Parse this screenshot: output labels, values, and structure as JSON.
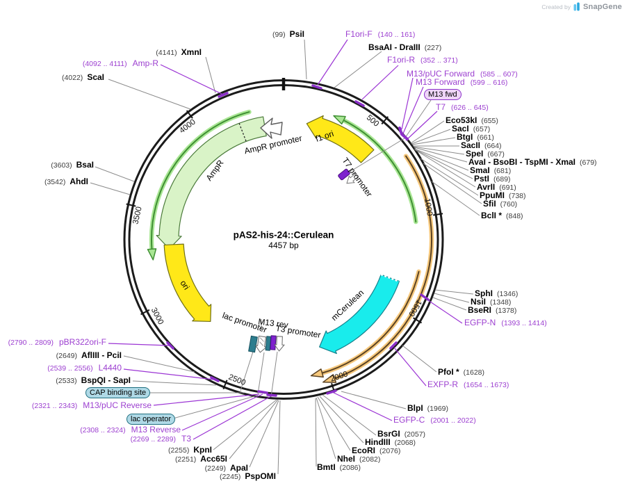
{
  "meta": {
    "created_by": "Created by",
    "brand": "SnapGene"
  },
  "plasmid": {
    "name": "pAS2-his-24::Cerulean",
    "size": "4457 bp",
    "length": 4457
  },
  "ticks": [
    {
      "label": "500",
      "pos": 500
    },
    {
      "label": "1000",
      "pos": 1000
    },
    {
      "label": "1500",
      "pos": 1500
    },
    {
      "label": "2000",
      "pos": 2000
    },
    {
      "label": "2500",
      "pos": 2500
    },
    {
      "label": "3000",
      "pos": 3000
    },
    {
      "label": "3500",
      "pos": 3500
    },
    {
      "label": "4000",
      "pos": 4000
    }
  ],
  "features": {
    "ampr_label": "AmpR",
    "ampr_promoter_label": "AmpR promoter",
    "f1_ori_label": "f1 ori",
    "t7_promoter_label": "T7 promoter",
    "mcerulean_label": "mCerulean",
    "ori_label": "ori",
    "lac_promoter_label": "lac promoter",
    "m13_rev_label": "M13 rev",
    "t3_promoter_label": "T3 promoter"
  },
  "badges": {
    "m13_fwd": "M13 fwd",
    "cap_binding_site": "CAP binding site",
    "lac_operator": "lac operator"
  },
  "sites": [
    {
      "name": "PsiI",
      "pos": "(99)"
    },
    {
      "name": "BsaAI - DraIII",
      "pos": "(227)"
    },
    {
      "name": "Eco53kI",
      "pos": "(655)"
    },
    {
      "name": "SacI",
      "pos": "(657)"
    },
    {
      "name": "BtgI",
      "pos": "(661)"
    },
    {
      "name": "SacII",
      "pos": "(664)"
    },
    {
      "name": "SpeI",
      "pos": "(667)"
    },
    {
      "name": "AvaI - BsoBI - TspMI - XmaI",
      "pos": "(679)"
    },
    {
      "name": "SmaI",
      "pos": "(681)"
    },
    {
      "name": "PstI",
      "pos": "(689)"
    },
    {
      "name": "AvrII",
      "pos": "(691)"
    },
    {
      "name": "PpuMI",
      "pos": "(738)"
    },
    {
      "name": "SfiI",
      "pos": "(760)"
    },
    {
      "name": "BclI *",
      "pos": "(848)"
    },
    {
      "name": "SphI",
      "pos": "(1346)"
    },
    {
      "name": "NsiI",
      "pos": "(1348)"
    },
    {
      "name": "BseRI",
      "pos": "(1378)"
    },
    {
      "name": "PfoI *",
      "pos": "(1628)"
    },
    {
      "name": "BlpI",
      "pos": "(1969)"
    },
    {
      "name": "BsrGI",
      "pos": "(2057)"
    },
    {
      "name": "HindIII",
      "pos": "(2068)"
    },
    {
      "name": "EcoRI",
      "pos": "(2076)"
    },
    {
      "name": "NheI",
      "pos": "(2082)"
    },
    {
      "name": "BmtI",
      "pos": "(2086)"
    },
    {
      "name": "PspOMI",
      "pos": "(2245)"
    },
    {
      "name": "ApaI",
      "pos": "(2249)"
    },
    {
      "name": "Acc65I",
      "pos": "(2251)"
    },
    {
      "name": "KpnI",
      "pos": "(2255)"
    },
    {
      "name": "BspQI - SapI",
      "pos": "(2533)"
    },
    {
      "name": "AflIII - PciI",
      "pos": "(2649)"
    },
    {
      "name": "AhdI",
      "pos": "(3542)"
    },
    {
      "name": "BsaI",
      "pos": "(3603)"
    },
    {
      "name": "ScaI",
      "pos": "(4022)"
    },
    {
      "name": "XmnI",
      "pos": "(4141)"
    }
  ],
  "primers": [
    {
      "name": "F1ori-F",
      "range": "(140 .. 161)"
    },
    {
      "name": "F1ori-R",
      "range": "(352 .. 371)"
    },
    {
      "name": "M13/pUC Forward",
      "range": "(585 .. 607)"
    },
    {
      "name": "M13 Forward",
      "range": "(599 .. 616)"
    },
    {
      "name": "T7",
      "range": "(626 .. 645)"
    },
    {
      "name": "EGFP-N",
      "range": "(1393 .. 1414)"
    },
    {
      "name": "EXFP-R",
      "range": "(1654 .. 1673)"
    },
    {
      "name": "EGFP-C",
      "range": "(2001 .. 2022)"
    },
    {
      "name": "T3",
      "range": "(2269 .. 2289)"
    },
    {
      "name": "M13 Reverse",
      "range": "(2308 .. 2324)"
    },
    {
      "name": "M13/pUC Reverse",
      "range": "(2321 .. 2343)"
    },
    {
      "name": "L4440",
      "range": "(2539 .. 2556)"
    },
    {
      "name": "pBR322ori-F",
      "range": "(2790 .. 2809)"
    },
    {
      "name": "Amp-R",
      "range": "(4092 .. 4111)"
    }
  ],
  "map_features": [
    {
      "kind": "band",
      "name": "AmpR",
      "tail": 4340,
      "head": 3285,
      "r": 165,
      "w": 14,
      "fill": "#d9f3c7",
      "stroke": "#4a7a3a"
    },
    {
      "kind": "band",
      "name": "f1 ori",
      "tail": 560,
      "head": 140,
      "r": 170,
      "w": 13,
      "fill": "#ffe818",
      "stroke": "#6f6f15"
    },
    {
      "kind": "band",
      "name": "ori",
      "tail": 3310,
      "head": 2745,
      "r": 158,
      "w": 14,
      "fill": "#ffe818",
      "stroke": "#6f6f15"
    },
    {
      "kind": "band",
      "name": "mCerulean",
      "tail": 1360,
      "head": 2000,
      "r": 163,
      "w": 14,
      "fill": "#19ecec",
      "stroke": "#15808c"
    },
    {
      "kind": "thin",
      "name": "",
      "tail": 4270,
      "head": 3260,
      "r": 190,
      "glow": "#a9e694",
      "core": "#3f8f33"
    },
    {
      "kind": "thin",
      "name": "",
      "tail": 1020,
      "head": 300,
      "r": 192,
      "glow": "#a9e694",
      "core": "#3f8f33"
    },
    {
      "kind": "thin",
      "name": "",
      "tail": 690,
      "head": 2010,
      "r": 213,
      "glow": "#f6c87c",
      "core": "#5a4223"
    },
    {
      "kind": "thin",
      "name": "",
      "tail": 1280,
      "head": 2060,
      "r": 200,
      "glow": "#f6c87c",
      "core": "#5a4223"
    }
  ],
  "colors": {
    "primer_text": "#9C3FD0",
    "primer_line": "#9B34D4",
    "primer_mark": "#8B2FC9",
    "ring": "#1b1b1b",
    "leader": "#8a8a8a",
    "amp_green": "#d9f3c7",
    "origin_yellow": "#ffe818",
    "cerulean_cyan": "#19ecec",
    "thin_green": "#a9e694",
    "thin_orange": "#f6c87c",
    "badge_purple_bg": "#EFD5F8",
    "badge_teal_bg": "#AFD9E6"
  }
}
